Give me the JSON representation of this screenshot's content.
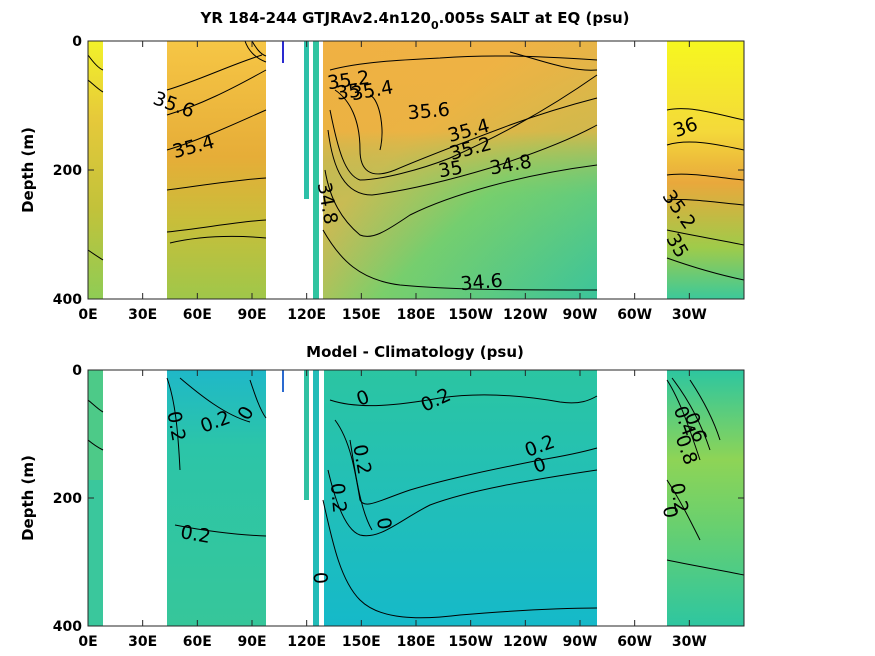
{
  "chart_data": [
    {
      "type": "heatmap",
      "title_main": "YR 184-244 GTJRAv2.4n120",
      "title_sub": "0",
      "title_end": ".005s SALT at EQ (psu)",
      "ylabel": "Depth (m)",
      "xlim": [
        0,
        360
      ],
      "ylim": [
        400,
        0
      ],
      "x_ticks": [
        "0E",
        "30E",
        "60E",
        "90E",
        "120E",
        "150E",
        "180E",
        "150W",
        "120W",
        "90W",
        "60W",
        "30W"
      ],
      "y_ticks": [
        "0",
        "200",
        "400"
      ],
      "grid": false,
      "contour_labels": [
        {
          "text": "35.6",
          "lon": 47,
          "depth": 100,
          "angle": 20
        },
        {
          "text": "35.4",
          "lon": 58,
          "depth": 165,
          "angle": -15
        },
        {
          "text": "35.2",
          "lon": 143,
          "depth": 62,
          "angle": -8
        },
        {
          "text": "35",
          "lon": 143,
          "depth": 80,
          "angle": -8
        },
        {
          "text": "35.4",
          "lon": 156,
          "depth": 78,
          "angle": -10
        },
        {
          "text": "35.6",
          "lon": 187,
          "depth": 110,
          "angle": -5
        },
        {
          "text": "35.4",
          "lon": 209,
          "depth": 140,
          "angle": -15
        },
        {
          "text": "35.2",
          "lon": 210,
          "depth": 168,
          "angle": -15
        },
        {
          "text": "35",
          "lon": 199,
          "depth": 200,
          "angle": -10
        },
        {
          "text": "34.8",
          "lon": 232,
          "depth": 193,
          "angle": -10
        },
        {
          "text": "34.8",
          "lon": 131,
          "depth": 252,
          "angle": 80
        },
        {
          "text": "34.6",
          "lon": 216,
          "depth": 375,
          "angle": -5
        },
        {
          "text": "36",
          "lon": 328,
          "depth": 135,
          "angle": -20
        },
        {
          "text": "35.2",
          "lon": 324,
          "depth": 262,
          "angle": 55
        },
        {
          "text": "35",
          "lon": 323,
          "depth": 318,
          "angle": 60
        }
      ]
    },
    {
      "type": "heatmap",
      "title": "Model - Climatology (psu)",
      "ylabel": "Depth (m)",
      "xlim": [
        0,
        360
      ],
      "ylim": [
        400,
        0
      ],
      "x_ticks": [
        "0E",
        "30E",
        "60E",
        "90E",
        "120E",
        "150E",
        "180E",
        "150W",
        "120W",
        "90W",
        "60W",
        "30W"
      ],
      "y_ticks": [
        "0",
        "200",
        "400"
      ],
      "grid": false,
      "contour_labels": [
        {
          "text": "0.2",
          "lon": 48,
          "depth": 88,
          "angle": 80
        },
        {
          "text": "0.2",
          "lon": 70,
          "depth": 82,
          "angle": -20
        },
        {
          "text": "0",
          "lon": 87,
          "depth": 68,
          "angle": -60
        },
        {
          "text": "0",
          "lon": 151,
          "depth": 45,
          "angle": -20
        },
        {
          "text": "0.2",
          "lon": 191,
          "depth": 48,
          "angle": -25
        },
        {
          "text": "0.2",
          "lon": 248,
          "depth": 120,
          "angle": -20
        },
        {
          "text": "0",
          "lon": 248,
          "depth": 150,
          "angle": -20
        },
        {
          "text": "0.2",
          "lon": 150,
          "depth": 140,
          "angle": 80
        },
        {
          "text": "0.2",
          "lon": 137,
          "depth": 200,
          "angle": 85
        },
        {
          "text": "0",
          "lon": 162,
          "depth": 240,
          "angle": 80
        },
        {
          "text": "0.2",
          "lon": 59,
          "depth": 258,
          "angle": 10
        },
        {
          "text": "0",
          "lon": 127,
          "depth": 325,
          "angle": 85
        },
        {
          "text": "0.4",
          "lon": 327,
          "depth": 80,
          "angle": 70
        },
        {
          "text": "0.6",
          "lon": 333,
          "depth": 90,
          "angle": 70
        },
        {
          "text": "0.8",
          "lon": 328,
          "depth": 125,
          "angle": 70
        },
        {
          "text": "0",
          "lon": 319,
          "depth": 222,
          "angle": 80
        },
        {
          "text": "0.2",
          "lon": 324,
          "depth": 200,
          "angle": 80
        }
      ]
    }
  ]
}
